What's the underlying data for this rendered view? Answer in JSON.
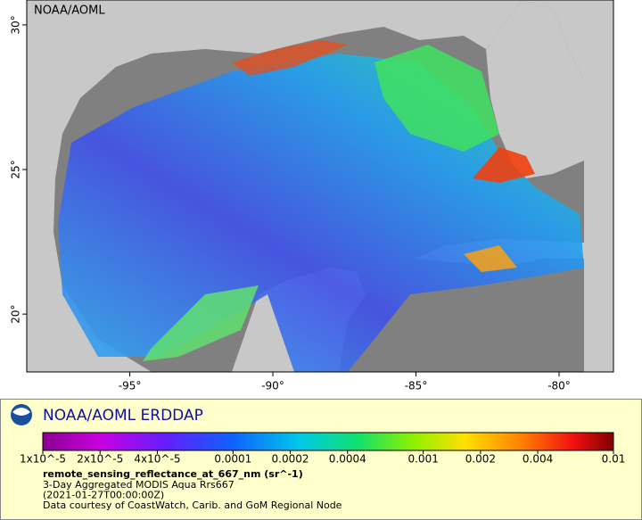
{
  "map": {
    "watermark": "NOAA/AOML",
    "lonlim": [
      -98.6,
      -78.1
    ],
    "latlim": [
      18,
      30.86
    ],
    "lonticks": [
      {
        "value": -95,
        "label": "-95°"
      },
      {
        "value": -90,
        "label": "-90°"
      },
      {
        "value": -85,
        "label": "-85°"
      },
      {
        "value": -80,
        "label": "-80°"
      }
    ],
    "latticks": [
      {
        "value": 20,
        "label": "20°"
      },
      {
        "value": 25,
        "label": "25°"
      },
      {
        "value": 30,
        "label": "30°"
      }
    ]
  },
  "legend": {
    "brand": "NOAA/AOML ERDDAP",
    "scale": "log",
    "range": [
      1e-05,
      0.01
    ],
    "ticks": [
      {
        "value": 1e-05,
        "label": "1x10^-5"
      },
      {
        "value": 2e-05,
        "label": "2x10^-5"
      },
      {
        "value": 4e-05,
        "label": "4x10^-5"
      },
      0.0001,
      0.0002,
      0.0004,
      0.001,
      0.002,
      0.004,
      0.01
    ],
    "variable": "remote_sensing_reflectance_at_667_nm (sr^-1)",
    "lines": [
      "3-Day Aggregated MODIS Aqua Rrs667",
      "(2021-01-27T00:00:00Z)",
      "Data courtesy of CoastWatch, Carib. and GoM Regional Node"
    ]
  }
}
